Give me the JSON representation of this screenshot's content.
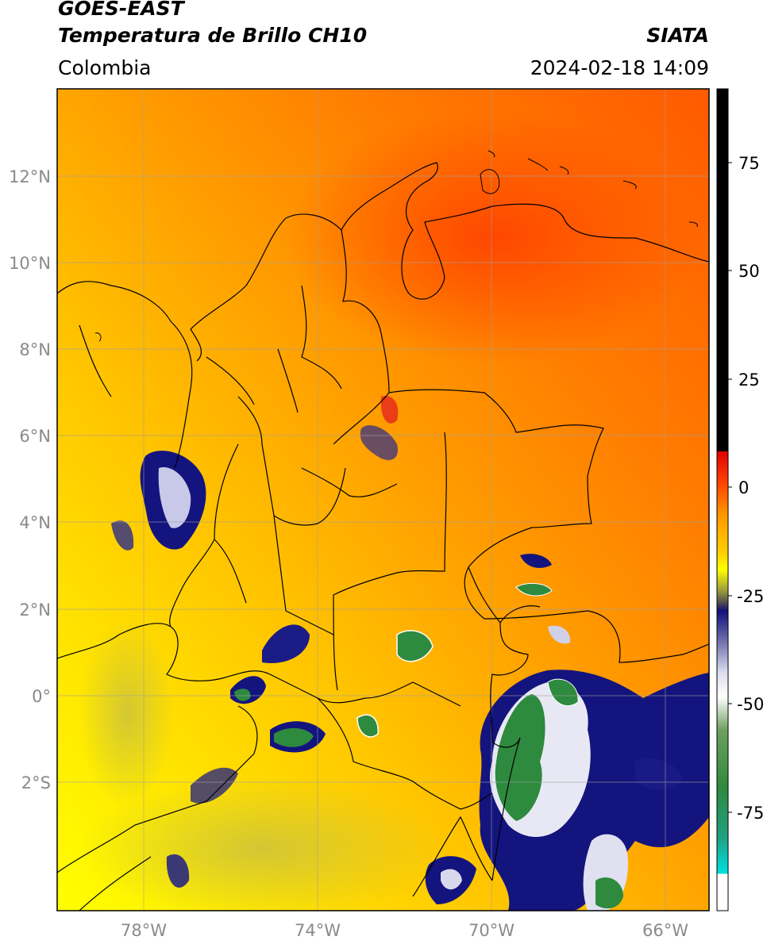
{
  "header": {
    "satellite": "GOES-EAST",
    "product": "Temperatura de Brillo CH10",
    "region": "Colombia",
    "agency": "SIATA",
    "datetime": "2024-02-18 14:09"
  },
  "map": {
    "lon_range": [
      -80,
      -65
    ],
    "lat_range": [
      -5,
      14
    ],
    "lat_labels": [
      "12°N",
      "10°N",
      "8°N",
      "6°N",
      "4°N",
      "2°N",
      "0°",
      "2°S"
    ],
    "lon_labels": [
      "78°W",
      "74°W",
      "70°W",
      "66°W"
    ]
  },
  "colorbar": {
    "range": [
      -95,
      90
    ],
    "tick_labels": [
      "75",
      "50",
      "25",
      "0",
      "-25",
      "-50",
      "-75"
    ],
    "colors": {
      "black": "#000000",
      "red": "#e8140a",
      "orange": "#ff9a00",
      "yellow": "#ffff00",
      "olive": "#9e9e3a",
      "navy": "#10107a",
      "white": "#ffffff",
      "green": "#2e8a3e",
      "cyan": "#00e0e0"
    }
  }
}
